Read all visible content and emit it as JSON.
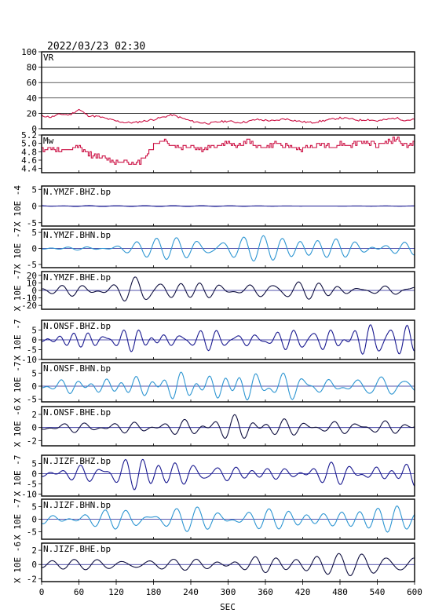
{
  "datetime": "2022/03/23 02:30",
  "chart_data": [
    {
      "type": "line",
      "panel": "vr",
      "label": "VR",
      "ylim": [
        0,
        100
      ],
      "yticks": [
        0,
        20,
        40,
        60,
        80,
        100
      ],
      "grid": true,
      "color": "#cc1144",
      "x": [
        0,
        15,
        30,
        45,
        60,
        75,
        90,
        105,
        120,
        135,
        150,
        165,
        180,
        195,
        210,
        225,
        240,
        255,
        270,
        285,
        300,
        315,
        330,
        345,
        360,
        375,
        390,
        405,
        420,
        435,
        450,
        465,
        480,
        495,
        510,
        525,
        540,
        555,
        570,
        585,
        600
      ],
      "values": [
        17,
        15,
        19,
        18,
        25,
        17,
        16,
        13,
        10,
        8,
        8,
        10,
        12,
        15,
        18,
        14,
        10,
        8,
        7,
        9,
        10,
        8,
        9,
        12,
        11,
        10,
        13,
        11,
        9,
        8,
        10,
        12,
        14,
        13,
        11,
        12,
        10,
        12,
        14,
        11,
        12
      ]
    },
    {
      "type": "line",
      "panel": "mw",
      "label": "Mw",
      "ylim": [
        4.3,
        5.2
      ],
      "yticks": [
        4.4,
        4.6,
        4.8,
        5.0,
        5.2
      ],
      "grid": false,
      "color": "#cc1144",
      "x": [
        0,
        15,
        30,
        45,
        60,
        75,
        90,
        105,
        120,
        135,
        150,
        165,
        180,
        195,
        210,
        225,
        240,
        255,
        270,
        285,
        300,
        315,
        330,
        345,
        360,
        375,
        390,
        405,
        420,
        435,
        450,
        465,
        480,
        495,
        510,
        525,
        540,
        555,
        570,
        585,
        600
      ],
      "values": [
        4.85,
        4.9,
        4.8,
        4.85,
        4.9,
        4.75,
        4.7,
        4.6,
        4.55,
        4.6,
        4.45,
        4.7,
        4.95,
        5.1,
        4.95,
        4.9,
        4.95,
        4.85,
        4.9,
        4.95,
        5.0,
        4.95,
        5.05,
        4.95,
        4.9,
        5.0,
        4.95,
        4.9,
        4.85,
        4.95,
        5.0,
        4.9,
        5.0,
        4.95,
        5.05,
        5.0,
        4.95,
        5.05,
        5.1,
        4.95,
        5.0
      ]
    },
    {
      "type": "line",
      "panel": "seismogram",
      "label": "N.YMZF.BHZ.bp",
      "ylabel": "X 10E -4",
      "ylim": [
        -6,
        6
      ],
      "yticks": [
        -5,
        0,
        5
      ],
      "color": "#1a1a90",
      "amplitude": [
        [
          0,
          0.8
        ],
        [
          30,
          0.3
        ],
        [
          60,
          0.5
        ],
        [
          120,
          0.15
        ],
        [
          600,
          0.05
        ]
      ],
      "period": 40,
      "seed": 1
    },
    {
      "type": "line",
      "panel": "seismogram",
      "label": "N.YMZF.BHN.bp",
      "ylabel": "X 10E -7",
      "ylim": [
        -6,
        6
      ],
      "yticks": [
        -5,
        0,
        5
      ],
      "color": "#2e96d2",
      "amplitude": [
        [
          0,
          1.5
        ],
        [
          90,
          2.5
        ],
        [
          180,
          3.5
        ],
        [
          300,
          5
        ],
        [
          400,
          5
        ],
        [
          480,
          5
        ],
        [
          600,
          2
        ]
      ],
      "period": 30,
      "seed": 2
    },
    {
      "type": "line",
      "panel": "seismogram",
      "label": "N.YMZF.BHE.bp",
      "ylabel": "X 10E -7",
      "ylim": [
        -25,
        25
      ],
      "yticks": [
        -20,
        -10,
        0,
        10,
        20
      ],
      "color": "#101040",
      "amplitude": [
        [
          0,
          8
        ],
        [
          120,
          10
        ],
        [
          160,
          24
        ],
        [
          180,
          15
        ],
        [
          300,
          12
        ],
        [
          600,
          10
        ]
      ],
      "period": 32,
      "seed": 3
    },
    {
      "type": "line",
      "panel": "seismogram",
      "label": "N.ONSF.BHZ.bp",
      "ylabel": "X 10E -7",
      "ylim": [
        -10,
        10
      ],
      "yticks": [
        -10,
        -5,
        0,
        5
      ],
      "color": "#1a1a90",
      "amplitude": [
        [
          0,
          4
        ],
        [
          150,
          8
        ],
        [
          200,
          5
        ],
        [
          400,
          4
        ],
        [
          550,
          9
        ],
        [
          600,
          8
        ]
      ],
      "period": 28,
      "seed": 4
    },
    {
      "type": "line",
      "panel": "seismogram",
      "label": "N.ONSF.BHN.bp",
      "ylabel": "X 10E -7",
      "ylim": [
        -6,
        9
      ],
      "yticks": [
        -5,
        0,
        5
      ],
      "color": "#2e96d2",
      "amplitude": [
        [
          0,
          2
        ],
        [
          200,
          4
        ],
        [
          330,
          6
        ],
        [
          450,
          5
        ],
        [
          540,
          6
        ],
        [
          600,
          3
        ]
      ],
      "period": 30,
      "seed": 5
    },
    {
      "type": "line",
      "panel": "seismogram",
      "label": "N.ONSF.BHE.bp",
      "ylabel": "X 10E -6",
      "ylim": [
        -2.8,
        3.2
      ],
      "yticks": [
        -2,
        0,
        2
      ],
      "color": "#101040",
      "amplitude": [
        [
          0,
          0.8
        ],
        [
          200,
          1.2
        ],
        [
          300,
          2.5
        ],
        [
          330,
          3
        ],
        [
          360,
          2.2
        ],
        [
          450,
          1
        ],
        [
          600,
          1.2
        ]
      ],
      "period": 38,
      "seed": 6
    },
    {
      "type": "line",
      "panel": "seismogram",
      "label": "N.JIZF.BHZ.bp",
      "ylabel": "X 10E -7",
      "ylim": [
        -11,
        9
      ],
      "yticks": [
        -10,
        -5,
        0,
        5
      ],
      "color": "#1a1a90",
      "amplitude": [
        [
          0,
          3
        ],
        [
          160,
          9
        ],
        [
          200,
          6
        ],
        [
          400,
          3
        ],
        [
          540,
          9
        ],
        [
          600,
          6
        ]
      ],
      "period": 28,
      "seed": 7
    },
    {
      "type": "line",
      "panel": "seismogram",
      "label": "N.JIZF.BHN.bp",
      "ylabel": "X 10E -7",
      "ylim": [
        -8,
        8
      ],
      "yticks": [
        -5,
        0,
        5
      ],
      "color": "#2e96d2",
      "amplitude": [
        [
          0,
          4
        ],
        [
          200,
          5
        ],
        [
          400,
          5
        ],
        [
          570,
          7
        ],
        [
          600,
          5
        ]
      ],
      "period": 30,
      "seed": 8
    },
    {
      "type": "line",
      "panel": "seismogram",
      "label": "N.JIZF.BHE.bp",
      "ylabel": "X 10E -6",
      "ylim": [
        -2.4,
        3
      ],
      "yticks": [
        -2,
        0,
        2
      ],
      "color": "#101040",
      "amplitude": [
        [
          0,
          0.7
        ],
        [
          200,
          0.8
        ],
        [
          300,
          1.5
        ],
        [
          350,
          2.6
        ],
        [
          400,
          1.5
        ],
        [
          600,
          1.5
        ]
      ],
      "period": 38,
      "seed": 9
    }
  ],
  "x_axis": {
    "label": "SEC",
    "xlim": [
      0,
      600
    ],
    "ticks": [
      0,
      60,
      120,
      180,
      240,
      300,
      360,
      420,
      480,
      540,
      600
    ]
  }
}
